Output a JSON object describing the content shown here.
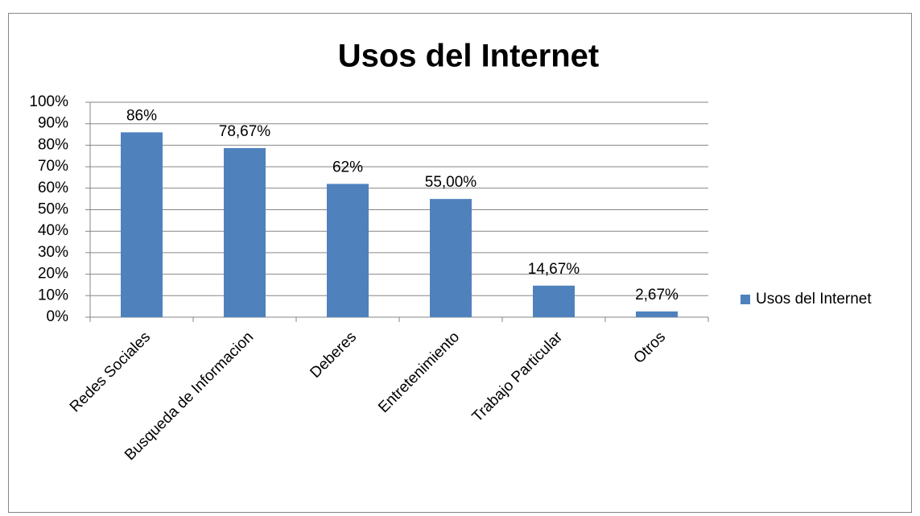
{
  "chart_data": {
    "type": "bar",
    "title": "Usos del Internet",
    "categories": [
      "Redes Sociales",
      "Busqueda de Informacion",
      "Deberes",
      "Entretenimiento",
      "Trabajo Particular",
      "Otros"
    ],
    "series": [
      {
        "name": "Usos del Internet",
        "color": "#4f81bd",
        "values": [
          86,
          78.67,
          62,
          55,
          14.67,
          2.67
        ],
        "value_labels": [
          "86%",
          "78,67%",
          "62%",
          "55,00%",
          "14,67%",
          "2,67%"
        ]
      }
    ],
    "ylim": [
      0,
      100
    ],
    "yticks": [
      {
        "value": 0,
        "label": "0%"
      },
      {
        "value": 10,
        "label": "10%"
      },
      {
        "value": 20,
        "label": "20%"
      },
      {
        "value": 30,
        "label": "30%"
      },
      {
        "value": 40,
        "label": "40%"
      },
      {
        "value": 50,
        "label": "50%"
      },
      {
        "value": 60,
        "label": "60%"
      },
      {
        "value": 70,
        "label": "70%"
      },
      {
        "value": 80,
        "label": "80%"
      },
      {
        "value": 90,
        "label": "90%"
      },
      {
        "value": 100,
        "label": "100%"
      }
    ],
    "grid": true,
    "legend": "right"
  }
}
